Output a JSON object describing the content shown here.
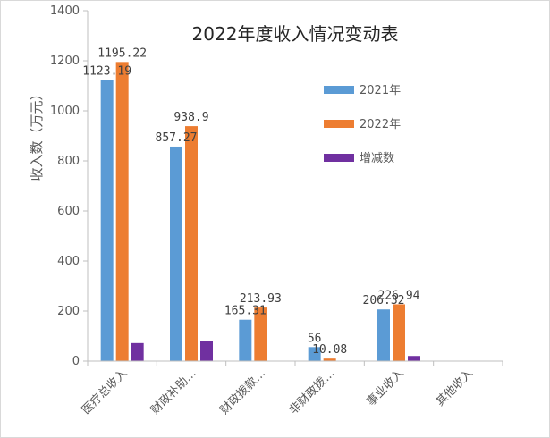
{
  "chart_data": {
    "type": "bar",
    "title": "2022年度收入情况变动表",
    "ylabel": "收入数（万元）",
    "xlabel": "",
    "ylim": [
      0,
      1400
    ],
    "yticks": [
      0,
      200,
      400,
      600,
      800,
      1000,
      1200,
      1400
    ],
    "categories": [
      "医疗总收入",
      "财政补助…",
      "财政拨款…",
      "非财政拨…",
      "事业收入",
      "其他收入"
    ],
    "series": [
      {
        "name": "2021年",
        "color": "#5b9bd5",
        "values": [
          1123.19,
          857.27,
          165.31,
          56,
          206.32,
          0
        ],
        "labels": [
          "1123.19",
          "857.27",
          "165.31",
          "56",
          "206.32",
          ""
        ]
      },
      {
        "name": "2022年",
        "color": "#ed7d31",
        "values": [
          1195.22,
          938.9,
          213.93,
          10.08,
          226.94,
          0
        ],
        "labels": [
          "1195.22",
          "938.9",
          "213.93",
          "10.08",
          "226.94",
          ""
        ]
      },
      {
        "name": "增减数",
        "color": "#7030a0",
        "values": [
          72.03,
          81.63,
          0,
          0,
          20.62,
          0
        ],
        "labels": [
          "",
          "",
          "",
          "",
          "",
          ""
        ]
      }
    ],
    "legend_position": "right",
    "grid": false
  }
}
